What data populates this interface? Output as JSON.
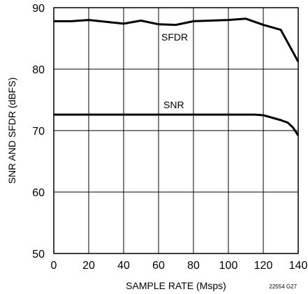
{
  "chart_data": {
    "type": "line",
    "xlabel": "SAMPLE RATE (Msps)",
    "ylabel": "SNR AND SFDR (dBFS)",
    "xlim": [
      0,
      140
    ],
    "ylim": [
      50,
      90
    ],
    "x_ticks": [
      0,
      20,
      40,
      60,
      80,
      100,
      120,
      140
    ],
    "y_ticks": [
      50,
      60,
      70,
      80,
      90
    ],
    "grid": true,
    "figure_id": "22554 G27",
    "series": [
      {
        "name": "SFDR",
        "x": [
          0,
          10,
          20,
          30,
          40,
          50,
          60,
          70,
          80,
          90,
          100,
          110,
          120,
          130,
          140
        ],
        "y": [
          87.8,
          87.8,
          88.0,
          87.7,
          87.4,
          87.9,
          87.3,
          87.2,
          87.8,
          87.9,
          88.0,
          88.2,
          87.2,
          86.4,
          81.2
        ]
      },
      {
        "name": "SNR",
        "x": [
          0,
          20,
          40,
          60,
          80,
          100,
          115,
          120,
          125,
          130,
          134,
          137,
          140
        ],
        "y": [
          72.6,
          72.6,
          72.6,
          72.6,
          72.6,
          72.6,
          72.6,
          72.5,
          72.1,
          71.7,
          71.3,
          70.5,
          69.2
        ]
      }
    ]
  }
}
